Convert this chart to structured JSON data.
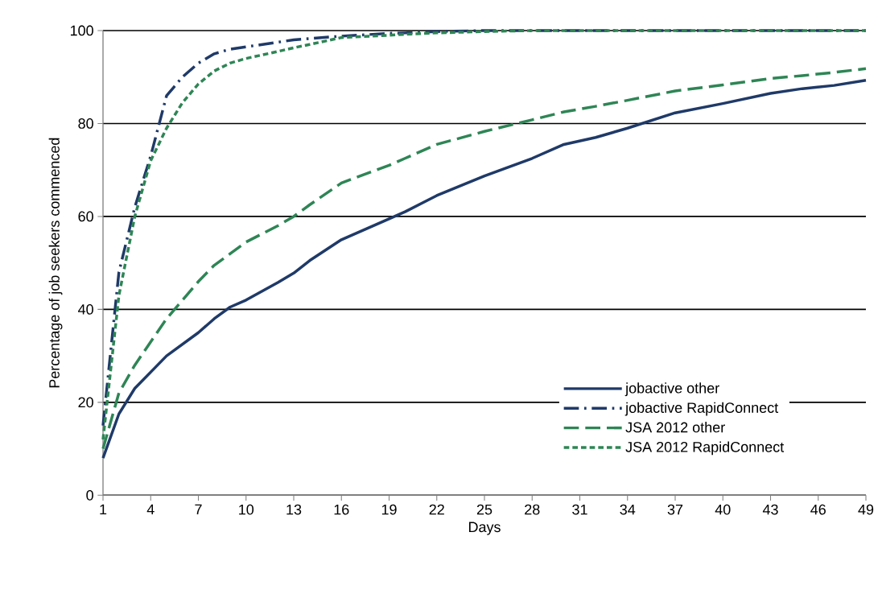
{
  "chart_data": {
    "type": "line",
    "xlabel": "Days",
    "ylabel": "Percentage of job seekers commenced",
    "x": [
      1,
      2,
      3,
      4,
      5,
      6,
      7,
      8,
      9,
      10,
      12,
      13,
      14,
      16,
      19,
      20,
      22,
      25,
      28,
      30,
      32,
      34,
      37,
      40,
      43,
      45,
      47,
      49
    ],
    "xlim": [
      1,
      49
    ],
    "xticks": [
      1,
      4,
      7,
      10,
      13,
      16,
      19,
      22,
      25,
      28,
      31,
      34,
      37,
      40,
      43,
      46,
      49
    ],
    "ylim": [
      0,
      100
    ],
    "yticks": [
      0,
      20,
      40,
      60,
      80,
      100
    ],
    "grid": "y",
    "legend": "bottom right",
    "series": [
      {
        "name": "jobactive other",
        "color": "#1f3a68",
        "line_style": "solid",
        "values": [
          8,
          17.5,
          23,
          26.5,
          30,
          32.5,
          35,
          38,
          40.5,
          42,
          45.8,
          47.8,
          50.5,
          55,
          59.5,
          61,
          64.5,
          68.7,
          72.5,
          75.5,
          77,
          79,
          82.3,
          84.3,
          86.5,
          87.5,
          88.2,
          89.3
        ]
      },
      {
        "name": "jobactive RapidConnect",
        "color": "#1f3a68",
        "line_style": "dashdot",
        "values": [
          15,
          48,
          62,
          73,
          86,
          90,
          93,
          95,
          96,
          96.5,
          97.5,
          98,
          98.3,
          98.8,
          99.4,
          99.5,
          99.8,
          100,
          100,
          100,
          100,
          100,
          100,
          100,
          100,
          100,
          100,
          100
        ]
      },
      {
        "name": "JSA 2012 other",
        "color": "#2e8555",
        "line_style": "dashed",
        "values": [
          10,
          22,
          28,
          33,
          38,
          42,
          46,
          49.5,
          52,
          54.5,
          58,
          60,
          62.5,
          67.2,
          71,
          72.5,
          75.5,
          78.3,
          80.8,
          82.5,
          83.7,
          85,
          87,
          88.3,
          89.7,
          90.3,
          91,
          91.8
        ]
      },
      {
        "name": "JSA 2012 RapidConnect",
        "color": "#2e8555",
        "line_style": "dotted",
        "values": [
          12,
          43,
          60,
          72,
          79,
          84.5,
          88.5,
          91.3,
          93,
          94,
          95.5,
          96.3,
          97,
          98.5,
          99,
          99.2,
          99.5,
          99.8,
          100,
          100,
          100,
          100,
          100,
          100,
          100,
          100,
          100,
          100
        ]
      }
    ]
  }
}
